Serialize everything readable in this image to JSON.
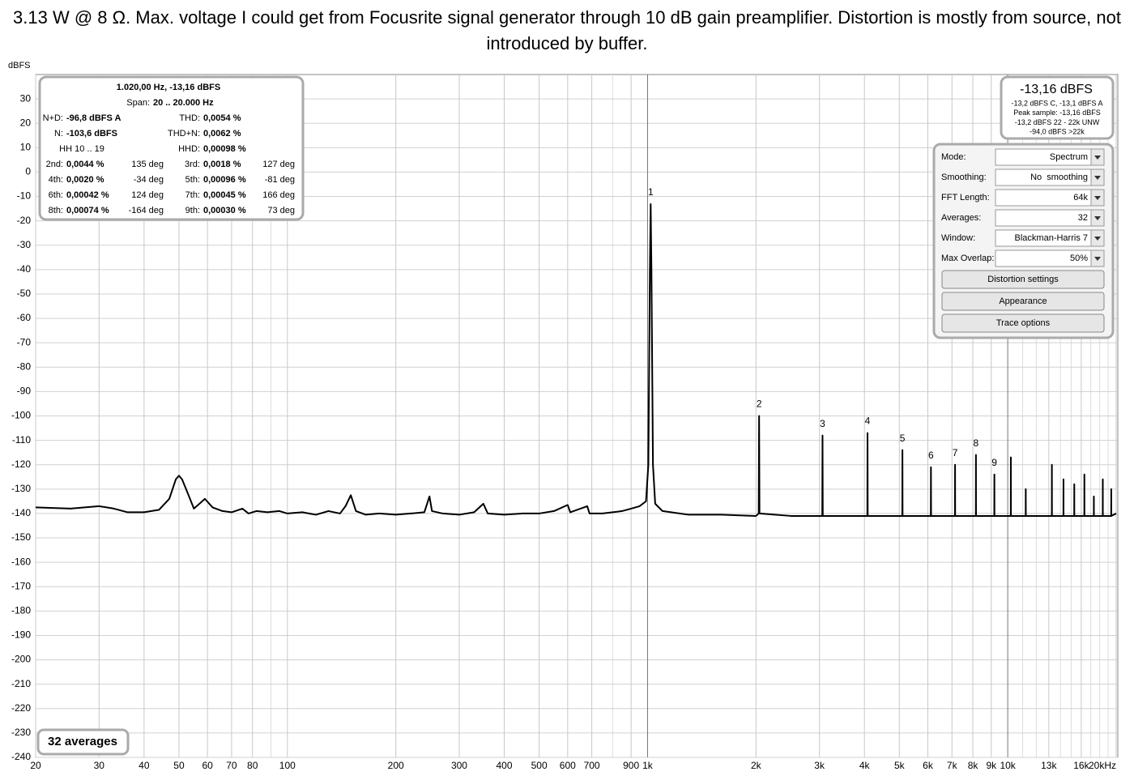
{
  "chart_data": {
    "type": "line",
    "title": "3.13 W @ 8 Ω. Max. voltage I could get from Focusrite signal generator through 10 dB gain preamplifier. Distortion is mostly from source, not introduced by buffer.",
    "y_label": "dBFS",
    "color": "#000000",
    "log_x": true,
    "grid": true,
    "xlim": [
      20,
      20000
    ],
    "ylim": [
      -240,
      40
    ],
    "xticks": [
      20,
      30,
      40,
      50,
      60,
      70,
      80,
      100,
      200,
      300,
      400,
      500,
      600,
      700,
      900,
      {
        "value": 1000,
        "label": "1k"
      },
      {
        "value": 2000,
        "label": "2k"
      },
      {
        "value": 3000,
        "label": "3k"
      },
      {
        "value": 4000,
        "label": "4k"
      },
      {
        "value": 5000,
        "label": "5k"
      },
      {
        "value": 6000,
        "label": "6k"
      },
      {
        "value": 7000,
        "label": "7k"
      },
      {
        "value": 8000,
        "label": "8k"
      },
      {
        "value": 9000,
        "label": "9k"
      },
      {
        "value": 10000,
        "label": "10k"
      },
      {
        "value": 13000,
        "label": "13k"
      },
      {
        "value": 16000,
        "label": "16k"
      },
      {
        "value": 20000,
        "label": "20kHz"
      }
    ],
    "x_minor_grid": [
      90,
      800,
      11000,
      12000,
      14000,
      15000,
      17000,
      18000,
      19000
    ],
    "yticks": [
      30,
      20,
      10,
      0,
      -10,
      -20,
      -30,
      -40,
      -50,
      -60,
      -70,
      -80,
      -90,
      -100,
      -110,
      -120,
      -130,
      -140,
      -150,
      -160,
      -170,
      -180,
      -190,
      -200,
      -210,
      -220,
      -230,
      -240
    ],
    "x": [
      20,
      25,
      30,
      33,
      36,
      40,
      44,
      47,
      49,
      50,
      51,
      53,
      55,
      57,
      59,
      62,
      66,
      70,
      75,
      78,
      82,
      88,
      95,
      100,
      110,
      120,
      130,
      140,
      145,
      150,
      155,
      165,
      180,
      200,
      220,
      240,
      248,
      252,
      270,
      300,
      330,
      350,
      360,
      400,
      450,
      500,
      550,
      600,
      610,
      680,
      690,
      750,
      800,
      850,
      900,
      950,
      990,
      1005,
      1015,
      1020,
      1025,
      1035,
      1050,
      1100,
      1300,
      1600,
      2000,
      2035,
      2040,
      2045,
      2500,
      3055,
      3060,
      3065,
      3500,
      4075,
      4080,
      4085,
      4600,
      5095,
      5100,
      5105,
      6115,
      6120,
      6125,
      7135,
      7140,
      7145,
      8155,
      8160,
      8165,
      9175,
      9180,
      9185,
      10195,
      10200,
      10205,
      11215,
      11220,
      11225,
      13255,
      13260,
      13265,
      14275,
      14280,
      14285,
      15295,
      15300,
      15305,
      16315,
      16320,
      16325,
      17335,
      17340,
      17345,
      18355,
      18360,
      18365,
      19375,
      19380,
      19385,
      20000
    ],
    "values": [
      -137.5,
      -138,
      -137,
      -138,
      -139.5,
      -139.5,
      -138.5,
      -134,
      -126,
      -124.5,
      -126,
      -132,
      -138,
      -136,
      -134,
      -137.5,
      -139,
      -139.5,
      -138,
      -140,
      -139,
      -139.5,
      -139,
      -140,
      -139.5,
      -140.5,
      -139,
      -140,
      -137,
      -132.5,
      -139,
      -140.5,
      -140,
      -140.5,
      -140,
      -139.5,
      -133,
      -139,
      -140,
      -140.5,
      -139.5,
      -136,
      -140,
      -140.5,
      -140,
      -140,
      -139,
      -136.5,
      -139.5,
      -137,
      -140,
      -140,
      -139.5,
      -139,
      -138,
      -137,
      -135,
      -120,
      -40,
      -13.16,
      -40,
      -120,
      -136,
      -139,
      -140.5,
      -140.5,
      -141,
      -140,
      -100,
      -140,
      -141,
      -141,
      -108,
      -141,
      -141,
      -141,
      -107,
      -141,
      -141,
      -141,
      -114,
      -141,
      -141,
      -121,
      -141,
      -141,
      -120,
      -141,
      -141,
      -116,
      -141,
      -141,
      -124,
      -141,
      -141,
      -117,
      -141,
      -141,
      -130,
      -141,
      -141,
      -120,
      -141,
      -141,
      -126,
      -141,
      -141,
      -128,
      -141,
      -141,
      -124,
      -141,
      -141,
      -133,
      -141,
      -141,
      -126,
      -141,
      -141,
      -130,
      -141,
      -140
    ],
    "harmonic_markers": [
      {
        "label": "1",
        "x": 1020,
        "y": -13.16
      },
      {
        "label": "2",
        "x": 2040,
        "y": -100
      },
      {
        "label": "3",
        "x": 3060,
        "y": -108
      },
      {
        "label": "4",
        "x": 4080,
        "y": -107
      },
      {
        "label": "5",
        "x": 5100,
        "y": -114
      },
      {
        "label": "6",
        "x": 6120,
        "y": -121
      },
      {
        "label": "7",
        "x": 7140,
        "y": -120
      },
      {
        "label": "8",
        "x": 8160,
        "y": -116
      },
      {
        "label": "9",
        "x": 9180,
        "y": -124
      }
    ]
  },
  "info_box": {
    "header": "1.020,00 Hz, -13,16 dBFS",
    "span_label": "Span:",
    "span_value": "20 .. 20.000 Hz",
    "rows": [
      [
        {
          "label": "N+D:",
          "value": "-96,8 dBFS A"
        },
        {
          "label": "THD:",
          "value": "0,0054 %"
        }
      ],
      [
        {
          "label": "N:",
          "value": "-103,6 dBFS"
        },
        {
          "label": "THD+N:",
          "value": "0,0062 %"
        }
      ],
      [
        {
          "label": "HH 10 .. 19"
        },
        {
          "label": "HHD:",
          "value": "0,00098 %"
        }
      ],
      [
        {
          "label": "2nd:",
          "value": "0,0044 %",
          "phase": "135 deg"
        },
        {
          "label": "3rd:",
          "value": "0,0018 %",
          "phase": "127 deg"
        }
      ],
      [
        {
          "label": "4th:",
          "value": "0,0020 %",
          "phase": "-34 deg"
        },
        {
          "label": "5th:",
          "value": "0,00096 %",
          "phase": "-81 deg"
        }
      ],
      [
        {
          "label": "6th:",
          "value": "0,00042 %",
          "phase": "124 deg"
        },
        {
          "label": "7th:",
          "value": "0,00045 %",
          "phase": "166 deg"
        }
      ],
      [
        {
          "label": "8th:",
          "value": "0,00074 %",
          "phase": "-164 deg"
        },
        {
          "label": "9th:",
          "value": "0,00030 %",
          "phase": "73 deg"
        }
      ]
    ]
  },
  "level_box": {
    "level": "-13,16 dBFS",
    "lines": [
      "-13,2 dBFS C, -13,1 dBFS A",
      "Peak sample: -13,16 dBFS",
      "-13,2 dBFS 22 - 22k UNW",
      "-94,0 dBFS >22k"
    ]
  },
  "controls": {
    "rows": [
      {
        "label": "Mode:",
        "value": "Spectrum"
      },
      {
        "label": "Smoothing:",
        "value": "No  smoothing"
      },
      {
        "label": "FFT Length:",
        "value": "64k"
      },
      {
        "label": "Averages:",
        "value": "32"
      },
      {
        "label": "Window:",
        "value": "Blackman-Harris 7"
      },
      {
        "label": "Max Overlap:",
        "value": "50%"
      }
    ],
    "buttons": [
      "Distortion settings",
      "Appearance",
      "Trace options"
    ]
  },
  "averages_badge": "32 averages"
}
